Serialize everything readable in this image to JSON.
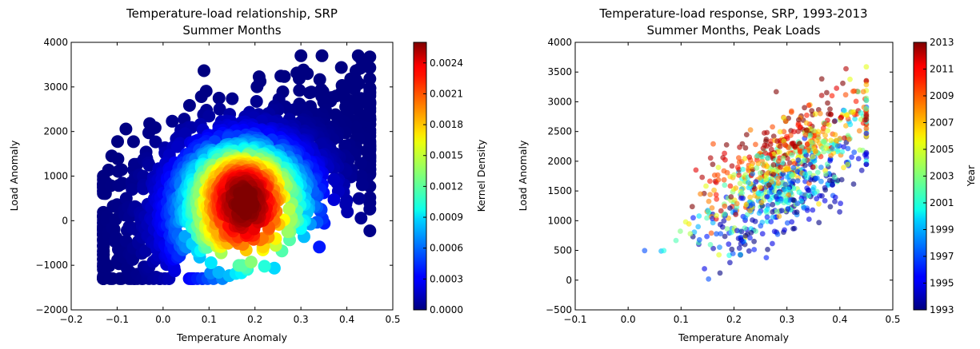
{
  "chart_data": [
    {
      "type": "scatter",
      "title": "Temperature-load relationship, SRP",
      "subtitle": "Summer Months",
      "xlabel": "Temperature Anomaly",
      "ylabel": "Load Anomaly",
      "xlim": [
        -0.2,
        0.5
      ],
      "ylim": [
        -2000,
        4000
      ],
      "xticks": [
        -0.2,
        -0.1,
        0.0,
        0.1,
        0.2,
        0.3,
        0.4,
        0.5
      ],
      "xtick_labels": [
        "−0.2",
        "−0.1",
        "0.0",
        "0.1",
        "0.2",
        "0.3",
        "0.4",
        "0.5"
      ],
      "yticks": [
        -2000,
        -1000,
        0,
        1000,
        2000,
        3000,
        4000
      ],
      "ytick_labels": [
        "−2000",
        "−1000",
        "0",
        "1000",
        "2000",
        "3000",
        "4000"
      ],
      "grid": false,
      "colormap": "jet",
      "marker_size": "large",
      "color_variable": "Kernel Density",
      "colorbar": {
        "label": "Kernel Density",
        "range": [
          0.0,
          0.0026
        ],
        "ticks": [
          0.0,
          0.0003,
          0.0006,
          0.0009,
          0.0012,
          0.0015,
          0.0018,
          0.0021,
          0.0024
        ],
        "tick_labels": [
          "0.0000",
          "0.0003",
          "0.0006",
          "0.0009",
          "0.0012",
          "0.0015",
          "0.0018",
          "0.0021",
          "0.0024"
        ]
      },
      "point_cloud": {
        "n_points": 1500,
        "temperature_range": [
          -0.13,
          0.45
        ],
        "load_trend": [
          [
            -0.13,
            -700
          ],
          [
            0.45,
            1500
          ]
        ],
        "load_spread": [
          -1300,
          3700
        ],
        "density_peak": [
          0.18,
          50
        ]
      }
    },
    {
      "type": "scatter",
      "title": "Temperature-load response, SRP, 1993-2013",
      "subtitle": "Summer Months, Peak Loads",
      "xlabel": "Temperature Anomaly",
      "ylabel": "Load Anomaly",
      "xlim": [
        -0.1,
        0.5
      ],
      "ylim": [
        -500,
        4000
      ],
      "xticks": [
        -0.1,
        0.0,
        0.1,
        0.2,
        0.3,
        0.4,
        0.5
      ],
      "xtick_labels": [
        "−0.1",
        "0.0",
        "0.1",
        "0.2",
        "0.3",
        "0.4",
        "0.5"
      ],
      "yticks": [
        -500,
        0,
        500,
        1000,
        1500,
        2000,
        2500,
        3000,
        3500,
        4000
      ],
      "ytick_labels": [
        "−500",
        "0",
        "500",
        "1000",
        "1500",
        "2000",
        "2500",
        "3000",
        "3500",
        "4000"
      ],
      "grid": false,
      "colormap": "jet",
      "marker_size": "small",
      "marker_alpha": 0.6,
      "color_variable": "Year",
      "colorbar": {
        "label": "Year",
        "range": [
          1993,
          2013
        ],
        "ticks": [
          1993,
          1995,
          1997,
          1999,
          2001,
          2003,
          2005,
          2007,
          2009,
          2011,
          2013
        ],
        "tick_labels": [
          "1993",
          "1995",
          "1997",
          "1999",
          "2001",
          "2003",
          "2005",
          "2007",
          "2009",
          "2011",
          "2013"
        ]
      },
      "point_cloud": {
        "n_points": 900,
        "temperature_range": [
          0.01,
          0.45
        ],
        "load_range": [
          -280,
          3700
        ],
        "load_trend": [
          [
            0.01,
            -250
          ],
          [
            0.45,
            1900
          ]
        ],
        "year_effect_per_year": 55
      }
    }
  ]
}
